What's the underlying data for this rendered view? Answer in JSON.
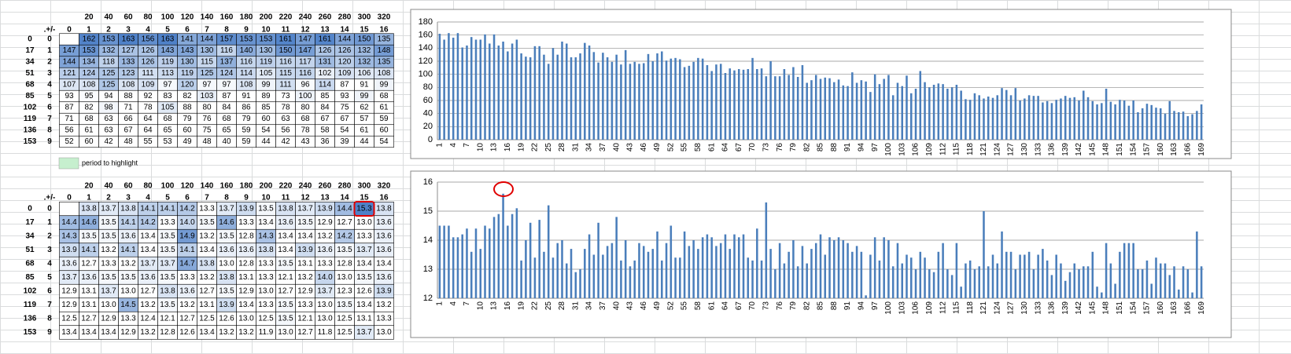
{
  "tables": [
    {
      "header_top": [
        20,
        40,
        60,
        80,
        100,
        120,
        140,
        160,
        180,
        200,
        220,
        240,
        260,
        280,
        300,
        320
      ],
      "header": [
        ".+/-",
        0,
        1,
        2,
        3,
        4,
        5,
        6,
        7,
        8,
        9,
        10,
        11,
        12,
        13,
        14,
        15,
        16
      ],
      "row_offsets": [
        0,
        17,
        34,
        51,
        68,
        85,
        102,
        119,
        136,
        153
      ],
      "row_index": [
        0,
        1,
        2,
        3,
        4,
        5,
        6,
        7,
        8,
        9
      ],
      "rows": [
        [
          null,
          162,
          153,
          163,
          156,
          163,
          141,
          144,
          157,
          153,
          153,
          161,
          147,
          161,
          144,
          150,
          135
        ],
        [
          147,
          153,
          132,
          127,
          126,
          143,
          143,
          130,
          116,
          140,
          130,
          150,
          147,
          126,
          126,
          132,
          148
        ],
        [
          144,
          134,
          118,
          133,
          126,
          119,
          130,
          115,
          137,
          116,
          119,
          116,
          117,
          131,
          120,
          132,
          135
        ],
        [
          121,
          124,
          125,
          123,
          111,
          113,
          119,
          125,
          124,
          114,
          105,
          115,
          116,
          102,
          109,
          106,
          108
        ],
        [
          107,
          108,
          125,
          108,
          109,
          97,
          120,
          97,
          97,
          108,
          99,
          111,
          96,
          114,
          87,
          91,
          99
        ],
        [
          93,
          95,
          94,
          88,
          92,
          83,
          82,
          103,
          87,
          91,
          89,
          73,
          100,
          85,
          93,
          99,
          68
        ],
        [
          87,
          82,
          98,
          71,
          78,
          105,
          88,
          80,
          84,
          86,
          85,
          78,
          80,
          84,
          75,
          62,
          61
        ],
        [
          71,
          68,
          63,
          66,
          64,
          68,
          79,
          76,
          68,
          79,
          60,
          63,
          68,
          67,
          67,
          57,
          59
        ],
        [
          56,
          61,
          63,
          67,
          64,
          65,
          60,
          75,
          65,
          59,
          54,
          56,
          78,
          58,
          54,
          61,
          60
        ],
        [
          52,
          60,
          42,
          48,
          55,
          53,
          49,
          48,
          40,
          59,
          44,
          42,
          43,
          36,
          39,
          44,
          54
        ]
      ]
    },
    {
      "header_top": [
        20,
        40,
        60,
        80,
        100,
        120,
        140,
        160,
        180,
        200,
        220,
        240,
        260,
        280,
        300,
        320
      ],
      "header": [
        ".+/-",
        0,
        1,
        2,
        3,
        4,
        5,
        6,
        7,
        8,
        9,
        10,
        11,
        12,
        13,
        14,
        15,
        16
      ],
      "row_offsets": [
        0,
        17,
        34,
        51,
        68,
        85,
        102,
        119,
        136,
        153
      ],
      "row_index": [
        0,
        1,
        2,
        3,
        4,
        5,
        6,
        7,
        8,
        9
      ],
      "rows": [
        [
          null,
          "13.8",
          "13.7",
          "13.8",
          "14.1",
          "14.1",
          "14.2",
          "13.3",
          "13.7",
          "13.9",
          "13.5",
          "13.8",
          "13.7",
          "13.9",
          "14.4",
          "15.3",
          "13.8"
        ],
        [
          "14.4",
          "14.6",
          "13.5",
          "14.1",
          "14.2",
          "13.3",
          "14.0",
          "13.5",
          "14.6",
          "13.3",
          "13.4",
          "13.6",
          "13.5",
          "12.9",
          "12.7",
          "13.0",
          "13.6"
        ],
        [
          "14.3",
          "13.5",
          "13.5",
          "13.6",
          "13.4",
          "13.5",
          "14.9",
          "13.2",
          "13.5",
          "12.8",
          "14.3",
          "13.4",
          "13.4",
          "13.2",
          "14.2",
          "13.3",
          "13.6"
        ],
        [
          "13.9",
          "14.1",
          "13.2",
          "14.1",
          "13.4",
          "13.5",
          "14.1",
          "13.4",
          "13.6",
          "13.6",
          "13.8",
          "13.4",
          "13.9",
          "13.6",
          "13.5",
          "13.7",
          "13.6"
        ],
        [
          "13.6",
          "12.7",
          "13.3",
          "13.2",
          "13.7",
          "13.7",
          "14.7",
          "13.8",
          "13.0",
          "12.8",
          "13.3",
          "13.5",
          "13.1",
          "13.3",
          "12.8",
          "13.4",
          "13.4"
        ],
        [
          "13.7",
          "13.6",
          "13.5",
          "13.5",
          "13.6",
          "13.5",
          "13.3",
          "13.2",
          "13.8",
          "13.1",
          "13.3",
          "12.1",
          "13.2",
          "14.0",
          "13.0",
          "13.5",
          "13.6"
        ],
        [
          "12.9",
          "13.1",
          "13.7",
          "13.0",
          "12.7",
          "13.8",
          "13.6",
          "12.7",
          "13.5",
          "12.9",
          "13.0",
          "12.7",
          "12.9",
          "13.7",
          "12.3",
          "12.6",
          "13.9"
        ],
        [
          "12.9",
          "13.1",
          "13.0",
          "14.5",
          "13.2",
          "13.5",
          "13.2",
          "13.1",
          "13.9",
          "13.4",
          "13.3",
          "13.5",
          "13.3",
          "13.0",
          "13.5",
          "13.4",
          "13.2"
        ],
        [
          "12.5",
          "12.7",
          "12.9",
          "13.3",
          "12.4",
          "12.1",
          "12.7",
          "12.5",
          "12.6",
          "13.0",
          "12.5",
          "13.5",
          "12.1",
          "13.0",
          "12.5",
          "13.1",
          "13.3"
        ],
        [
          "13.4",
          "13.4",
          "13.4",
          "12.9",
          "13.2",
          "12.8",
          "12.6",
          "13.4",
          "13.2",
          "13.2",
          "11.9",
          "13.0",
          "12.7",
          "11.8",
          "12.5",
          "13.7",
          "13.0"
        ]
      ]
    }
  ],
  "legend": {
    "label": "period to highlight",
    "color": "#c6efce"
  },
  "chart_data": [
    {
      "type": "bar",
      "color": "#4a7ebb",
      "ylim": [
        0,
        180
      ],
      "yticks": [
        0,
        20,
        40,
        60,
        80,
        100,
        120,
        140,
        160,
        180
      ],
      "grid": true,
      "categories": [
        1,
        null,
        null,
        4,
        null,
        null,
        7,
        null,
        null,
        10,
        null,
        null,
        13,
        null,
        null,
        16,
        null,
        null,
        19,
        null,
        null,
        22,
        null,
        null,
        25,
        null,
        null,
        28,
        null,
        null,
        31,
        null,
        null,
        34,
        null,
        null,
        37,
        null,
        null,
        40,
        null,
        null,
        43,
        null,
        null,
        46,
        null,
        null,
        49,
        null,
        null,
        52,
        null,
        null,
        55,
        null,
        null,
        58,
        null,
        null,
        61,
        null,
        null,
        64,
        null,
        null,
        67,
        null,
        null,
        70,
        null,
        null,
        73,
        null,
        null,
        76,
        null,
        null,
        79,
        null,
        null,
        82,
        null,
        null,
        85,
        null,
        null,
        88,
        null,
        null,
        91,
        null,
        null,
        94,
        null,
        null,
        97,
        null,
        null,
        100,
        null,
        null,
        103,
        null,
        null,
        106,
        null,
        null,
        109,
        null,
        null,
        112,
        null,
        null,
        115,
        null,
        null,
        118,
        null,
        null,
        121,
        null,
        null,
        124,
        null,
        null,
        127,
        null,
        null,
        130,
        null,
        null,
        133,
        null,
        null,
        136,
        null,
        null,
        139,
        null,
        null,
        142,
        null,
        null,
        145,
        null,
        null,
        148,
        null,
        null,
        151,
        null,
        null,
        154,
        null,
        null,
        157,
        null,
        null,
        160,
        null,
        null,
        163,
        null,
        null,
        166,
        null,
        null,
        169
      ],
      "values": [
        162,
        153,
        163,
        156,
        163,
        141,
        144,
        157,
        153,
        153,
        161,
        147,
        161,
        144,
        150,
        135,
        147,
        153,
        132,
        127,
        126,
        143,
        143,
        130,
        116,
        140,
        130,
        150,
        147,
        126,
        126,
        132,
        148,
        144,
        134,
        118,
        133,
        126,
        119,
        130,
        115,
        137,
        116,
        119,
        116,
        117,
        131,
        120,
        132,
        135,
        121,
        124,
        125,
        123,
        111,
        113,
        119,
        125,
        124,
        114,
        105,
        115,
        116,
        102,
        109,
        106,
        108,
        107,
        108,
        125,
        108,
        109,
        97,
        120,
        97,
        97,
        108,
        99,
        111,
        96,
        114,
        87,
        91,
        99,
        93,
        95,
        94,
        88,
        92,
        83,
        82,
        103,
        87,
        91,
        89,
        73,
        100,
        85,
        93,
        99,
        68,
        87,
        82,
        98,
        71,
        78,
        105,
        88,
        80,
        84,
        86,
        85,
        78,
        80,
        84,
        75,
        62,
        61,
        71,
        68,
        63,
        66,
        64,
        68,
        79,
        76,
        68,
        79,
        60,
        63,
        68,
        67,
        67,
        57,
        59,
        56,
        61,
        63,
        67,
        64,
        65,
        60,
        75,
        65,
        59,
        54,
        56,
        78,
        58,
        54,
        61,
        60,
        52,
        60,
        42,
        48,
        55,
        53,
        49,
        48,
        40,
        59,
        44,
        42,
        43,
        36,
        39,
        44,
        54
      ]
    },
    {
      "type": "bar",
      "color": "#4a7ebb",
      "ylim": [
        12,
        16
      ],
      "yticks": [
        12,
        13,
        14,
        15,
        16
      ],
      "grid": true,
      "categories": [
        1,
        null,
        null,
        4,
        null,
        null,
        7,
        null,
        null,
        10,
        null,
        null,
        13,
        null,
        null,
        16,
        null,
        null,
        19,
        null,
        null,
        22,
        null,
        null,
        25,
        null,
        null,
        28,
        null,
        null,
        31,
        null,
        null,
        34,
        null,
        null,
        37,
        null,
        null,
        40,
        null,
        null,
        43,
        null,
        null,
        46,
        null,
        null,
        49,
        null,
        null,
        52,
        null,
        null,
        55,
        null,
        null,
        58,
        null,
        null,
        61,
        null,
        null,
        64,
        null,
        null,
        67,
        null,
        null,
        70,
        null,
        null,
        73,
        null,
        null,
        76,
        null,
        null,
        79,
        null,
        null,
        82,
        null,
        null,
        85,
        null,
        null,
        88,
        null,
        null,
        91,
        null,
        null,
        94,
        null,
        null,
        97,
        null,
        null,
        100,
        null,
        null,
        103,
        null,
        null,
        106,
        null,
        null,
        109,
        null,
        null,
        112,
        null,
        null,
        115,
        null,
        null,
        118,
        null,
        null,
        121,
        null,
        null,
        124,
        null,
        null,
        127,
        null,
        null,
        130,
        null,
        null,
        133,
        null,
        null,
        136,
        null,
        null,
        139,
        null,
        null,
        142,
        null,
        null,
        145,
        null,
        null,
        148,
        null,
        null,
        151,
        null,
        null,
        154,
        null,
        null,
        157,
        null,
        null,
        160,
        null,
        null,
        163,
        null,
        null,
        166,
        null,
        null,
        169
      ],
      "values": [
        14.5,
        14.5,
        14.5,
        14.1,
        14.1,
        14.2,
        14.4,
        13.6,
        14.4,
        13.7,
        14.5,
        14.4,
        14.8,
        14.9,
        15.6,
        14.5,
        14.9,
        15.1,
        13.3,
        14.0,
        14.6,
        13.4,
        14.7,
        13.6,
        15.2,
        13.4,
        13.9,
        14.0,
        13.2,
        13.7,
        12.9,
        13.0,
        13.7,
        14.2,
        13.5,
        14.6,
        13.5,
        13.8,
        13.9,
        14.8,
        13.3,
        14.0,
        13.1,
        13.3,
        13.9,
        13.8,
        13.6,
        13.7,
        14.3,
        13.3,
        13.9,
        14.5,
        13.4,
        13.4,
        14.3,
        13.8,
        14.0,
        13.7,
        14.1,
        14.2,
        14.1,
        13.8,
        13.9,
        14.2,
        13.7,
        14.2,
        14.1,
        14.2,
        13.4,
        13.3,
        14.4,
        13.3,
        15.3,
        13.7,
        13.0,
        13.9,
        13.2,
        13.6,
        14.0,
        13.1,
        13.8,
        13.2,
        13.7,
        13.9,
        14.2,
        13.5,
        14.1,
        14.0,
        14.1,
        14.0,
        13.9,
        13.6,
        13.8,
        13.6,
        12.1,
        13.5,
        14.1,
        13.3,
        14.1,
        14.0,
        13.1,
        13.9,
        13.2,
        13.5,
        13.4,
        13.0,
        13.6,
        13.4,
        13.0,
        12.9,
        13.6,
        13.9,
        13.0,
        12.8,
        13.9,
        12.4,
        13.2,
        13.3,
        13.0,
        13.1,
        15.0,
        13.1,
        13.5,
        13.2,
        14.3,
        13.6,
        13.6,
        13.0,
        13.5,
        13.5,
        13.6,
        13.0,
        13.5,
        13.7,
        13.3,
        12.8,
        13.5,
        13.2,
        12.6,
        12.9,
        13.2,
        13.0,
        13.1,
        13.1,
        13.6,
        12.4,
        12.2,
        13.9,
        13.2,
        12.5,
        13.6,
        13.9,
        13.9,
        13.9,
        13.0,
        13.0,
        13.3,
        12.5,
        13.4,
        13.2,
        13.2,
        12.8,
        13.1,
        12.3,
        13.1,
        13.0,
        12.2,
        14.3,
        13.1
      ]
    }
  ]
}
